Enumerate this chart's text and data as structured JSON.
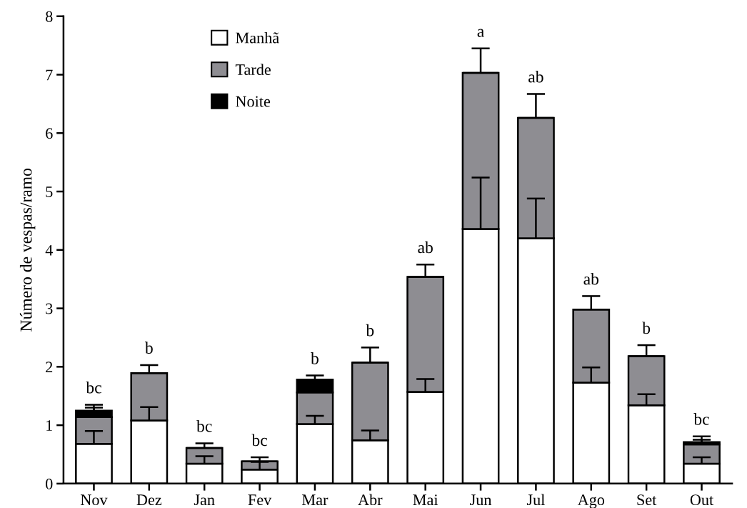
{
  "chart_data": {
    "type": "bar",
    "stacked": true,
    "ylabel": "Número de vespas/ramo",
    "categories": [
      "Nov",
      "Dez",
      "Jan",
      "Fev",
      "Mar",
      "Abr",
      "Mai",
      "Jun",
      "Jul",
      "Ago",
      "Set",
      "Out"
    ],
    "series": [
      {
        "name": "Manhã",
        "color": "#ffffff",
        "values": [
          0.68,
          1.08,
          0.34,
          0.24,
          1.02,
          0.74,
          1.57,
          4.36,
          4.2,
          1.73,
          1.34,
          0.34
        ],
        "errors": [
          [
            0.68,
            0.9
          ],
          [
            1.08,
            1.31
          ],
          [
            0.34,
            0.47
          ],
          [
            0.24,
            0.37
          ],
          [
            1.02,
            1.16
          ],
          [
            0.74,
            0.91
          ],
          [
            1.57,
            1.79
          ],
          [
            4.36,
            5.24
          ],
          [
            4.2,
            4.88
          ],
          [
            1.73,
            1.99
          ],
          [
            1.34,
            1.53
          ],
          [
            0.34,
            0.45
          ]
        ]
      },
      {
        "name": "Tarde",
        "color": "#8e8d92",
        "values": [
          0.46,
          0.81,
          0.27,
          0.14,
          0.54,
          1.33,
          1.97,
          2.67,
          2.06,
          1.25,
          0.84,
          0.33
        ],
        "errors": [
          [
            1.14,
            1.3
          ],
          [
            1.89,
            2.03
          ],
          [
            0.61,
            0.69
          ],
          [
            0.38,
            0.45
          ],
          null,
          [
            2.07,
            2.33
          ],
          [
            3.54,
            3.75
          ],
          [
            7.03,
            7.45
          ],
          [
            6.26,
            6.67
          ],
          [
            2.98,
            3.21
          ],
          [
            2.18,
            2.37
          ],
          [
            0.67,
            0.75
          ]
        ]
      },
      {
        "name": "Noite",
        "color": "#000000",
        "values": [
          0.11,
          0,
          0,
          0,
          0.22,
          0,
          0,
          0,
          0,
          0,
          0,
          0.04
        ],
        "errors": [
          [
            1.25,
            1.35
          ],
          null,
          null,
          null,
          [
            1.78,
            1.85
          ],
          null,
          null,
          null,
          null,
          null,
          null,
          [
            0.71,
            0.81
          ]
        ]
      }
    ],
    "ylim": [
      0,
      8
    ],
    "yticks": [
      0,
      1,
      2,
      3,
      4,
      5,
      6,
      7,
      8
    ],
    "grid": false,
    "legend": "top left",
    "annotations": [
      {
        "text": "bc",
        "x": "Nov",
        "y": 1.35
      },
      {
        "text": "b",
        "x": "Dez",
        "y": 2.03
      },
      {
        "text": "bc",
        "x": "Jan",
        "y": 0.69
      },
      {
        "text": "bc",
        "x": "Fev",
        "y": 0.45
      },
      {
        "text": "b",
        "x": "Mar",
        "y": 1.85
      },
      {
        "text": "b",
        "x": "Abr",
        "y": 2.33
      },
      {
        "text": "ab",
        "x": "Mai",
        "y": 3.75
      },
      {
        "text": "a",
        "x": "Jun",
        "y": 7.45
      },
      {
        "text": "ab",
        "x": "Jul",
        "y": 6.67
      },
      {
        "text": "ab",
        "x": "Ago",
        "y": 3.21
      },
      {
        "text": "b",
        "x": "Set",
        "y": 2.37
      },
      {
        "text": "bc",
        "x": "Out",
        "y": 0.81
      }
    ]
  }
}
